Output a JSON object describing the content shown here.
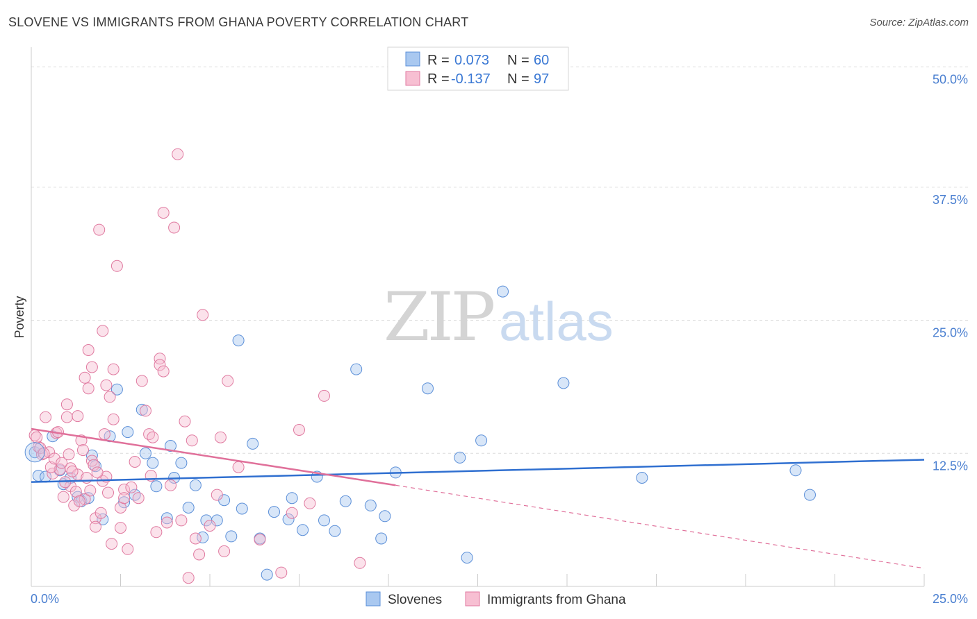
{
  "header": {
    "title": "SLOVENE VS IMMIGRANTS FROM GHANA POVERTY CORRELATION CHART",
    "source": "Source: ZipAtlas.com"
  },
  "watermark": {
    "zip": "ZIP",
    "atlas": "atlas"
  },
  "legend_box": {
    "rows": [
      {
        "r_label": "R =",
        "r_value": "0.073",
        "n_label": "N =",
        "n_value": "60",
        "color": "#a9c8f0",
        "stroke": "#5b8fd8"
      },
      {
        "r_label": "R =",
        "r_value": "-0.137",
        "n_label": "N =",
        "n_value": "97",
        "color": "#f7bfd2",
        "stroke": "#e07aa0"
      }
    ]
  },
  "chart_data": {
    "type": "scatter",
    "title": "SLOVENE VS IMMIGRANTS FROM GHANA POVERTY CORRELATION CHART",
    "xlabel": "",
    "ylabel": "Poverty",
    "xlim": [
      0,
      25
    ],
    "ylim": [
      0,
      50
    ],
    "x_tick_labels": [
      "0.0%",
      "25.0%"
    ],
    "y_tick_labels": [
      "12.5%",
      "25.0%",
      "37.5%",
      "50.0%"
    ],
    "y_ticks": [
      12.5,
      25.0,
      37.5,
      50.0
    ],
    "grid": true,
    "legend": "top-center",
    "series": [
      {
        "name": "Slovenes",
        "color": "#a9c8f0",
        "stroke": "#5b8fd8",
        "trend": {
          "x": [
            0,
            25
          ],
          "y": [
            9.8,
            11.9
          ],
          "color": "#2f6fd0"
        },
        "points": [
          [
            0.2,
            10.4
          ],
          [
            0.4,
            10.3
          ],
          [
            0.6,
            14.1
          ],
          [
            0.8,
            10.9
          ],
          [
            0.9,
            9.6
          ],
          [
            1.1,
            10.2
          ],
          [
            1.3,
            8.4
          ],
          [
            1.4,
            8.0
          ],
          [
            1.6,
            8.3
          ],
          [
            1.7,
            12.3
          ],
          [
            1.8,
            11.3
          ],
          [
            2.0,
            6.3
          ],
          [
            2.2,
            14.1
          ],
          [
            2.4,
            18.5
          ],
          [
            2.6,
            7.9
          ],
          [
            2.7,
            14.5
          ],
          [
            2.9,
            8.6
          ],
          [
            3.1,
            16.6
          ],
          [
            3.2,
            12.5
          ],
          [
            3.4,
            11.6
          ],
          [
            3.5,
            9.4
          ],
          [
            3.8,
            6.4
          ],
          [
            3.9,
            13.2
          ],
          [
            4.0,
            10.2
          ],
          [
            4.2,
            11.6
          ],
          [
            4.4,
            7.4
          ],
          [
            4.6,
            9.5
          ],
          [
            4.8,
            4.6
          ],
          [
            4.9,
            6.2
          ],
          [
            5.2,
            6.2
          ],
          [
            5.4,
            8.1
          ],
          [
            5.6,
            4.7
          ],
          [
            5.8,
            23.1
          ],
          [
            5.9,
            7.3
          ],
          [
            6.2,
            13.4
          ],
          [
            6.4,
            4.5
          ],
          [
            6.6,
            1.1
          ],
          [
            6.8,
            7.0
          ],
          [
            7.2,
            6.3
          ],
          [
            7.3,
            8.3
          ],
          [
            7.6,
            5.3
          ],
          [
            8.0,
            10.3
          ],
          [
            8.2,
            6.2
          ],
          [
            8.5,
            5.2
          ],
          [
            8.8,
            8.0
          ],
          [
            9.1,
            20.4
          ],
          [
            9.5,
            7.6
          ],
          [
            9.8,
            4.5
          ],
          [
            9.9,
            6.6
          ],
          [
            10.2,
            10.7
          ],
          [
            11.1,
            18.6
          ],
          [
            12.0,
            12.1
          ],
          [
            12.2,
            2.7
          ],
          [
            12.6,
            13.7
          ],
          [
            13.2,
            27.7
          ],
          [
            14.9,
            19.1
          ],
          [
            17.1,
            10.2
          ],
          [
            21.4,
            10.9
          ],
          [
            21.8,
            8.6
          ],
          [
            0.1,
            12.6
          ]
        ]
      },
      {
        "name": "Immigrants from Ghana",
        "color": "#f7bfd2",
        "stroke": "#e07aa0",
        "trend": {
          "x": [
            0,
            10.2
          ],
          "y": [
            14.8,
            9.5
          ],
          "color": "#e0709a"
        },
        "trend_dashed": {
          "x": [
            10.2,
            25
          ],
          "y": [
            9.5,
            1.7
          ]
        },
        "points": [
          [
            0.1,
            14.2
          ],
          [
            0.2,
            13.1
          ],
          [
            0.3,
            12.4
          ],
          [
            0.4,
            15.9
          ],
          [
            0.5,
            12.6
          ],
          [
            0.6,
            10.6
          ],
          [
            0.7,
            14.4
          ],
          [
            0.8,
            11.0
          ],
          [
            0.9,
            8.4
          ],
          [
            1.0,
            17.1
          ],
          [
            1.0,
            15.9
          ],
          [
            1.1,
            9.4
          ],
          [
            1.1,
            11.1
          ],
          [
            1.2,
            7.6
          ],
          [
            1.3,
            16.0
          ],
          [
            1.3,
            10.5
          ],
          [
            1.4,
            13.7
          ],
          [
            1.5,
            19.6
          ],
          [
            1.5,
            8.2
          ],
          [
            1.6,
            18.6
          ],
          [
            1.6,
            22.2
          ],
          [
            1.7,
            20.6
          ],
          [
            1.7,
            11.8
          ],
          [
            1.8,
            6.4
          ],
          [
            1.8,
            5.6
          ],
          [
            1.9,
            33.5
          ],
          [
            2.0,
            9.9
          ],
          [
            2.0,
            24.0
          ],
          [
            2.1,
            10.3
          ],
          [
            2.1,
            18.9
          ],
          [
            2.2,
            17.8
          ],
          [
            2.3,
            20.4
          ],
          [
            2.3,
            15.7
          ],
          [
            2.4,
            30.1
          ],
          [
            2.5,
            5.5
          ],
          [
            2.5,
            7.4
          ],
          [
            2.6,
            9.1
          ],
          [
            2.6,
            8.3
          ],
          [
            2.7,
            3.5
          ],
          [
            2.8,
            9.3
          ],
          [
            2.9,
            11.7
          ],
          [
            3.0,
            8.3
          ],
          [
            3.1,
            19.3
          ],
          [
            3.2,
            16.5
          ],
          [
            3.3,
            14.3
          ],
          [
            3.4,
            14.0
          ],
          [
            3.5,
            5.1
          ],
          [
            3.6,
            21.4
          ],
          [
            3.6,
            20.8
          ],
          [
            3.7,
            20.2
          ],
          [
            3.7,
            35.1
          ],
          [
            3.8,
            6.0
          ],
          [
            3.9,
            9.5
          ],
          [
            4.0,
            33.7
          ],
          [
            4.1,
            40.6
          ],
          [
            4.2,
            6.2
          ],
          [
            4.3,
            15.5
          ],
          [
            4.4,
            0.8
          ],
          [
            4.5,
            13.7
          ],
          [
            4.6,
            4.5
          ],
          [
            4.7,
            3.0
          ],
          [
            4.8,
            25.5
          ],
          [
            5.0,
            5.7
          ],
          [
            5.2,
            8.6
          ],
          [
            5.3,
            14.0
          ],
          [
            5.4,
            3.3
          ],
          [
            5.5,
            19.3
          ],
          [
            5.8,
            11.2
          ],
          [
            6.4,
            4.4
          ],
          [
            7.0,
            1.3
          ],
          [
            7.3,
            6.9
          ],
          [
            7.5,
            14.7
          ],
          [
            7.8,
            7.8
          ],
          [
            8.2,
            17.9
          ],
          [
            9.2,
            2.2
          ],
          [
            0.15,
            14.0
          ],
          [
            0.25,
            13.0
          ],
          [
            0.35,
            12.5
          ],
          [
            0.55,
            11.2
          ],
          [
            0.65,
            12.0
          ],
          [
            0.75,
            14.5
          ],
          [
            0.85,
            11.6
          ],
          [
            0.95,
            9.8
          ],
          [
            1.05,
            12.4
          ],
          [
            1.15,
            10.8
          ],
          [
            1.25,
            8.9
          ],
          [
            1.35,
            8.0
          ],
          [
            1.45,
            12.8
          ],
          [
            1.55,
            10.2
          ],
          [
            1.65,
            9.0
          ],
          [
            1.75,
            11.4
          ],
          [
            1.85,
            10.7
          ],
          [
            1.95,
            6.9
          ],
          [
            2.05,
            14.3
          ],
          [
            2.15,
            8.8
          ],
          [
            2.25,
            4.0
          ],
          [
            3.35,
            10.4
          ]
        ]
      }
    ]
  },
  "bottom_legend": {
    "items": [
      {
        "label": "Slovenes",
        "color": "#a9c8f0",
        "stroke": "#5b8fd8"
      },
      {
        "label": "Immigrants from Ghana",
        "color": "#f7bfd2",
        "stroke": "#e07aa0"
      }
    ]
  }
}
